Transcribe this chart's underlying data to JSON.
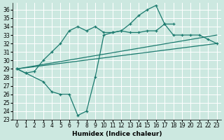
{
  "xlabel": "Humidex (Indice chaleur)",
  "bg_color": "#cce8e0",
  "grid_color": "#b0d8d0",
  "line_color": "#1a7a6e",
  "xlim": [
    -0.5,
    23.5
  ],
  "ylim": [
    23,
    36.8
  ],
  "yticks": [
    23,
    24,
    25,
    26,
    27,
    28,
    29,
    30,
    31,
    32,
    33,
    34,
    35,
    36
  ],
  "xticks": [
    0,
    1,
    2,
    3,
    4,
    5,
    6,
    7,
    8,
    9,
    10,
    11,
    12,
    13,
    14,
    15,
    16,
    17,
    18,
    19,
    20,
    21,
    22,
    23
  ],
  "line1_x": [
    0,
    1,
    2,
    3,
    4,
    5,
    6,
    7,
    8,
    9,
    10,
    11,
    12,
    13,
    14,
    15,
    16,
    17,
    18
  ],
  "line1_y": [
    29.0,
    28.5,
    28.7,
    30.0,
    31.0,
    32.0,
    33.5,
    34.0,
    33.5,
    34.0,
    33.3,
    33.3,
    33.5,
    34.3,
    35.3,
    36.0,
    36.5,
    34.3,
    34.3
  ],
  "line2_x": [
    0,
    1,
    3,
    4,
    5,
    6,
    7,
    8,
    9,
    10,
    11,
    12,
    13,
    14,
    15,
    16,
    17,
    18,
    19,
    20,
    21,
    22,
    23
  ],
  "line2_y": [
    29.0,
    28.5,
    27.5,
    26.3,
    26.0,
    26.0,
    23.5,
    24.0,
    28.0,
    33.0,
    33.3,
    33.5,
    33.3,
    33.3,
    33.5,
    33.5,
    34.3,
    33.0,
    33.0,
    33.0,
    33.0,
    32.5,
    32.0
  ],
  "line3_x": [
    0,
    23
  ],
  "line3_y": [
    29.0,
    33.0
  ],
  "line4_x": [
    0,
    23
  ],
  "line4_y": [
    29.0,
    32.0
  ]
}
